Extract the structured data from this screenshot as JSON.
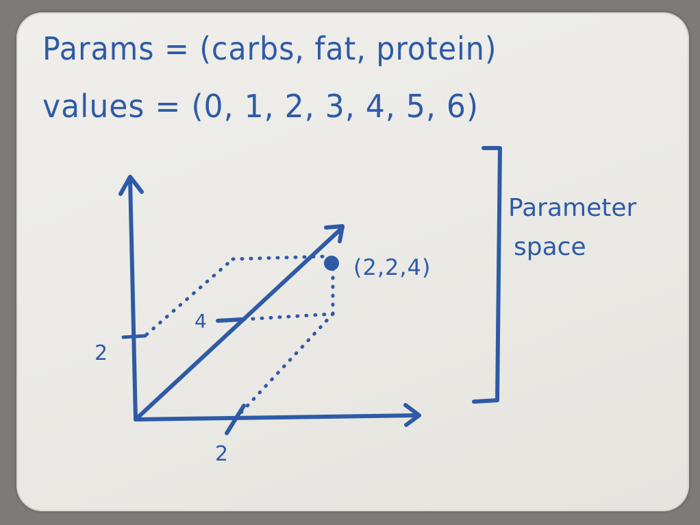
{
  "heading": {
    "params_line": "Params = (carbs, fat, protein)",
    "values_line": "values = (0, 1, 2, 3, 4, 5, 6)"
  },
  "diagram": {
    "point_label": "(2,2,4)",
    "tick_labels": {
      "vertical": "2",
      "horizontal": "2",
      "diagonal": "4"
    },
    "bracket_label": [
      "Parameter",
      "space"
    ]
  },
  "ink_color": "#2e5aa6"
}
